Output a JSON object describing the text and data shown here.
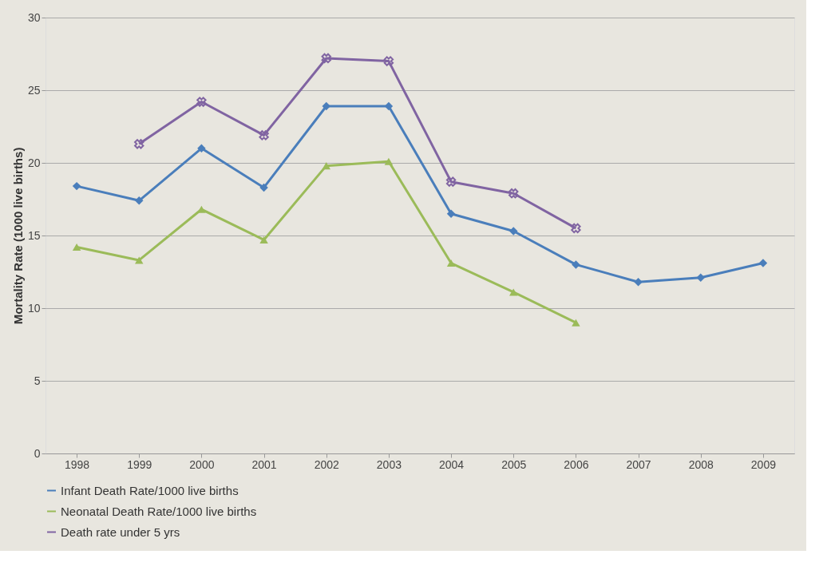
{
  "chart_data": {
    "type": "line",
    "ylabel": "Mortality Rate (1000 live births)",
    "categories": [
      "1998",
      "1999",
      "2000",
      "2001",
      "2002",
      "2003",
      "2004",
      "2005",
      "2006",
      "2007",
      "2008",
      "2009"
    ],
    "series": [
      {
        "name": "Infant Death Rate/1000 live births",
        "color": "#4a7ebb",
        "marker": "diamond",
        "values": [
          18.4,
          17.4,
          21.0,
          18.3,
          23.9,
          23.9,
          16.5,
          15.3,
          13.0,
          11.8,
          12.1,
          13.1
        ]
      },
      {
        "name": "Neonatal Death Rate/1000 live births",
        "color": "#9bbb59",
        "marker": "triangle",
        "values": [
          14.2,
          13.3,
          16.8,
          14.7,
          19.8,
          20.1,
          13.1,
          11.1,
          9.0,
          null,
          null,
          null
        ]
      },
      {
        "name": "Death rate under 5 yrs",
        "color": "#8064a2",
        "marker": "cross",
        "values": [
          null,
          21.3,
          24.2,
          21.9,
          27.2,
          27.0,
          18.7,
          17.9,
          15.5,
          null,
          null,
          null
        ]
      }
    ],
    "ylim": [
      0,
      30
    ],
    "yticks": [
      0,
      5,
      10,
      15,
      20,
      25,
      30
    ],
    "grid": "y",
    "legend": "bottom",
    "line_style": "solid"
  }
}
